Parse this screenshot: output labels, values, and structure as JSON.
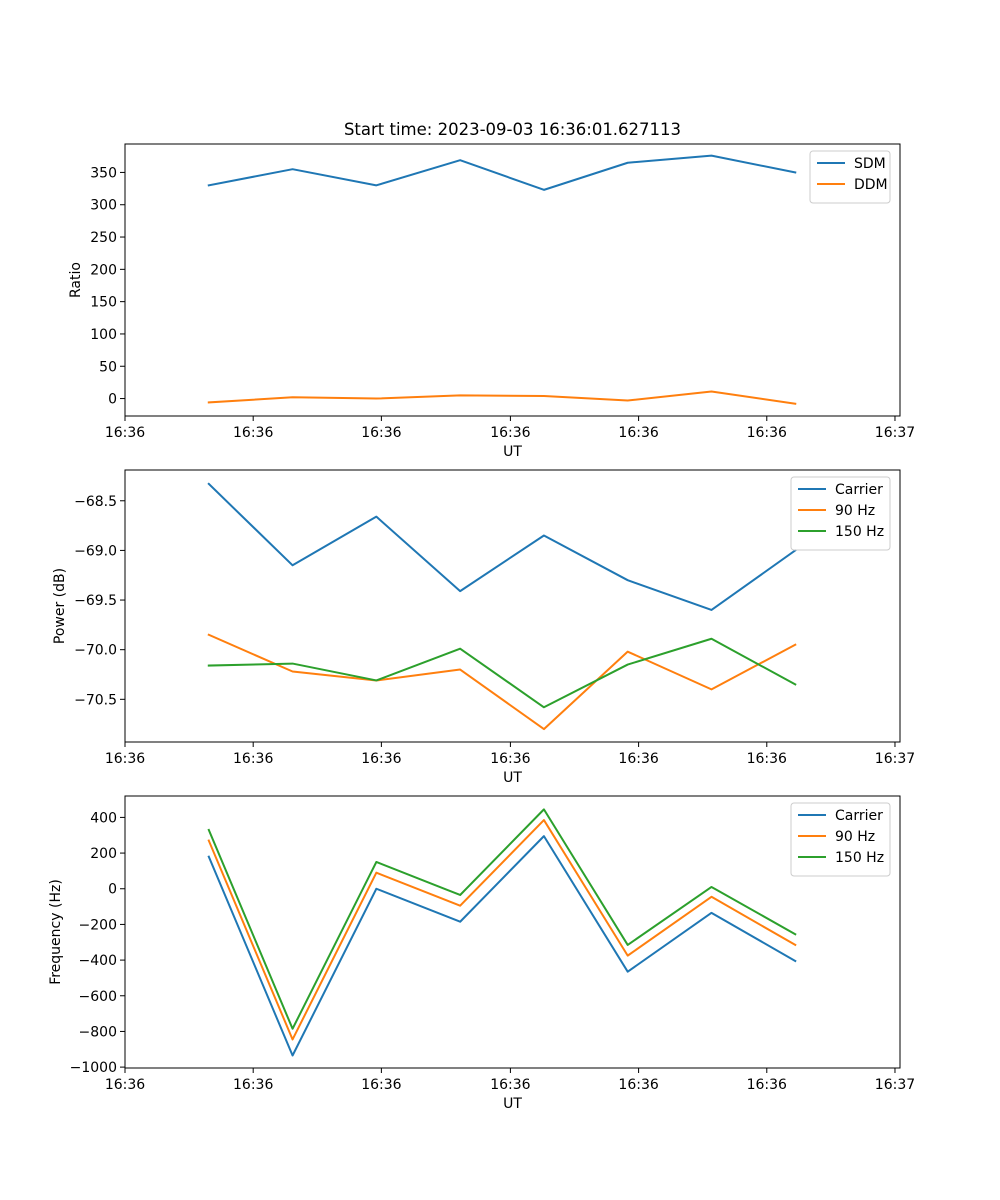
{
  "chart_data": [
    {
      "type": "line",
      "title": "Start time: 2023-09-03 16:36:01.627113",
      "xlabel": "UT",
      "ylabel": "Ratio",
      "xlim": [
        0,
        9.25
      ],
      "ylim": [
        -27,
        394
      ],
      "x": [
        1,
        2,
        3,
        4,
        5,
        6,
        7,
        8
      ],
      "xticks": [
        0,
        1.53,
        3.06,
        4.6,
        6.13,
        7.66,
        9.19
      ],
      "xtick_labels": [
        "16:36",
        "16:36",
        "16:36",
        "16:36",
        "16:36",
        "16:36",
        "16:37"
      ],
      "yticks": [
        0,
        50,
        100,
        150,
        200,
        250,
        300,
        350
      ],
      "ytick_labels": [
        "0",
        "50",
        "100",
        "150",
        "200",
        "250",
        "300",
        "350"
      ],
      "legend": "top-right",
      "series": [
        {
          "name": "SDM",
          "color": "#1f77b4",
          "values": [
            330,
            355,
            330,
            369,
            323,
            365,
            376,
            350
          ]
        },
        {
          "name": "DDM",
          "color": "#ff7f0e",
          "values": [
            -6,
            2,
            0,
            5,
            4,
            -3,
            11,
            -8
          ]
        }
      ]
    },
    {
      "type": "line",
      "title": "",
      "xlabel": "UT",
      "ylabel": "Power (dB)",
      "xlim": [
        0,
        9.25
      ],
      "ylim": [
        -70.93,
        -68.19
      ],
      "x": [
        1,
        2,
        3,
        4,
        5,
        6,
        7,
        8
      ],
      "xticks": [
        0,
        1.53,
        3.06,
        4.6,
        6.13,
        7.66,
        9.19
      ],
      "xtick_labels": [
        "16:36",
        "16:36",
        "16:36",
        "16:36",
        "16:36",
        "16:36",
        "16:37"
      ],
      "yticks": [
        -68.5,
        -69.0,
        -69.5,
        -70.0,
        -70.5
      ],
      "ytick_labels": [
        "−68.5",
        "−69.0",
        "−69.5",
        "−70.0",
        "−70.5"
      ],
      "legend": "top-right",
      "series": [
        {
          "name": "Carrier",
          "color": "#1f77b4",
          "values": [
            -68.33,
            -69.15,
            -68.66,
            -69.41,
            -68.85,
            -69.3,
            -69.6,
            -69.0
          ]
        },
        {
          "name": "90 Hz",
          "color": "#ff7f0e",
          "values": [
            -69.85,
            -70.22,
            -70.31,
            -70.2,
            -70.8,
            -70.02,
            -70.4,
            -69.95
          ]
        },
        {
          "name": "150 Hz",
          "color": "#2ca02c",
          "values": [
            -70.16,
            -70.14,
            -70.31,
            -69.99,
            -70.58,
            -70.15,
            -69.89,
            -70.35
          ]
        }
      ]
    },
    {
      "type": "line",
      "title": "",
      "xlabel": "UT",
      "ylabel": "Frequency (Hz)",
      "xlim": [
        0,
        9.25
      ],
      "ylim": [
        -1005,
        520
      ],
      "x": [
        1,
        2,
        3,
        4,
        5,
        6,
        7,
        8
      ],
      "xticks": [
        0,
        1.53,
        3.06,
        4.6,
        6.13,
        7.66,
        9.19
      ],
      "xtick_labels": [
        "16:36",
        "16:36",
        "16:36",
        "16:36",
        "16:36",
        "16:36",
        "16:37"
      ],
      "yticks": [
        400,
        200,
        0,
        -200,
        -400,
        -600,
        -800,
        -1000
      ],
      "ytick_labels": [
        "400",
        "200",
        "0",
        "−200",
        "−400",
        "−600",
        "−800",
        "−1000"
      ],
      "legend": "top-right",
      "series": [
        {
          "name": "Carrier",
          "color": "#1f77b4",
          "values": [
            180,
            -935,
            0,
            -185,
            295,
            -465,
            -135,
            -405
          ]
        },
        {
          "name": "90 Hz",
          "color": "#ff7f0e",
          "values": [
            270,
            -845,
            90,
            -95,
            385,
            -375,
            -45,
            -315
          ]
        },
        {
          "name": "150 Hz",
          "color": "#2ca02c",
          "values": [
            330,
            -785,
            150,
            -35,
            445,
            -315,
            10,
            -255
          ]
        }
      ]
    }
  ]
}
